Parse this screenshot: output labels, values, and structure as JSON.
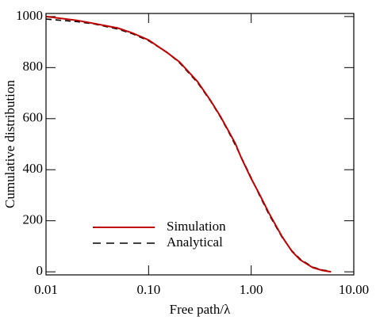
{
  "chart_data": {
    "type": "line",
    "xlabel": "Free path/λ",
    "ylabel": "Cumulative distribution",
    "x": [
      0.01,
      0.02,
      0.03,
      0.05,
      0.07,
      0.1,
      0.15,
      0.2,
      0.3,
      0.4,
      0.5,
      0.6,
      0.7,
      0.8,
      1.0,
      1.2,
      1.5,
      2,
      2.5,
      3,
      4,
      5,
      6
    ],
    "series": [
      {
        "name": "Simulation",
        "color": "#c00000",
        "dash": false,
        "values": [
          1000,
          985,
          972,
          955,
          935,
          908,
          860,
          822,
          745,
          672,
          610,
          552,
          503,
          447,
          365,
          305,
          228,
          138,
          80,
          47,
          16,
          5,
          0
        ]
      },
      {
        "name": "Analytical",
        "color": "#000000",
        "dash": true,
        "values": [
          990,
          980,
          970,
          951,
          932,
          905,
          861,
          819,
          741,
          670,
          607,
          549,
          497,
          449,
          368,
          301,
          223,
          135,
          82,
          50,
          18,
          7,
          2
        ]
      }
    ],
    "xscale": "log",
    "xlim": [
      0.01,
      10
    ],
    "xticks": [
      0.01,
      {
        "value": 0.1,
        "label": "0.10"
      },
      {
        "value": 1,
        "label": "1.00"
      },
      {
        "value": 10,
        "label": "10.00"
      }
    ],
    "ylim": [
      -12,
      1012
    ],
    "yticks": [
      0,
      200,
      400,
      600,
      800,
      1000
    ],
    "legend": "lower left"
  }
}
